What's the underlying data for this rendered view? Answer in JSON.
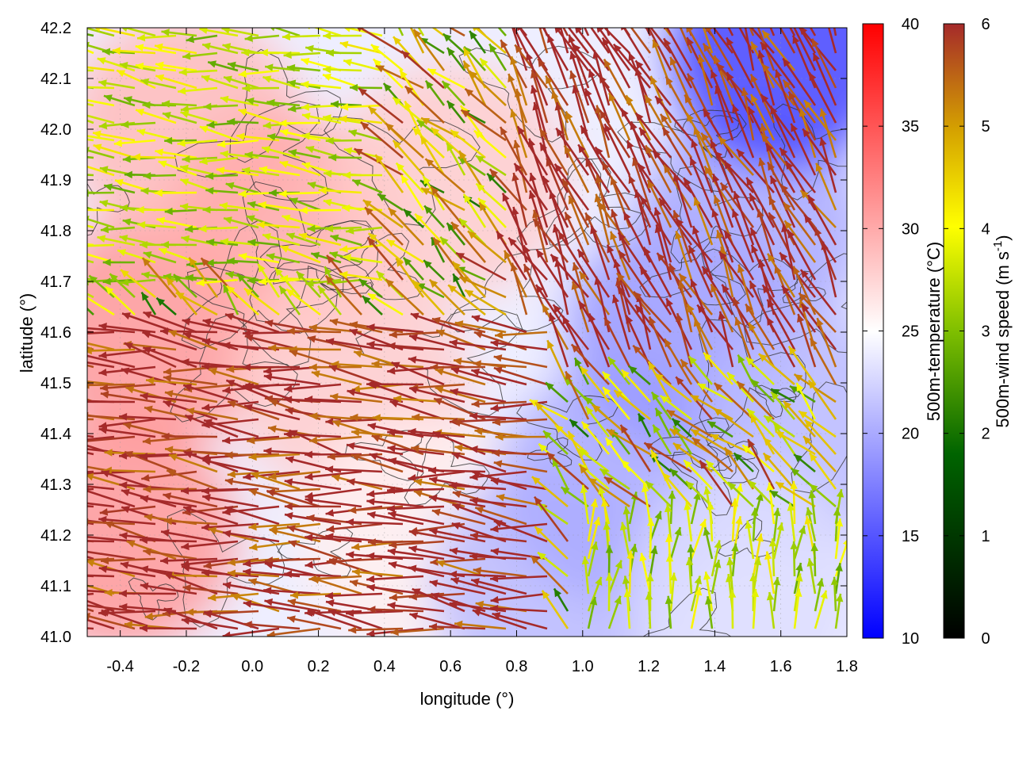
{
  "chart_data": {
    "type": "heatmap",
    "xlabel": "longitude (°)",
    "ylabel": "latitude (°)",
    "xlim": [
      -0.5,
      1.8
    ],
    "ylim": [
      41.0,
      42.2
    ],
    "x_ticks": [
      "-0.4",
      "-0.2",
      "0.0",
      "0.2",
      "0.4",
      "0.6",
      "0.8",
      "1.0",
      "1.2",
      "1.4",
      "1.6",
      "1.8"
    ],
    "x_tick_values": [
      -0.4,
      -0.2,
      0.0,
      0.2,
      0.4,
      0.6,
      0.8,
      1.0,
      1.2,
      1.4,
      1.6,
      1.8
    ],
    "y_ticks": [
      "41.0",
      "41.1",
      "41.2",
      "41.3",
      "41.4",
      "41.5",
      "41.6",
      "41.7",
      "41.8",
      "41.9",
      "42.0",
      "42.1",
      "42.2"
    ],
    "y_tick_values": [
      41.0,
      41.1,
      41.2,
      41.3,
      41.4,
      41.5,
      41.6,
      41.7,
      41.8,
      41.9,
      42.0,
      42.1,
      42.2
    ],
    "grid": true,
    "temperature_colorbar": {
      "label": "500m-temperature (°C)",
      "range": [
        10,
        40
      ],
      "ticks": [
        "10",
        "15",
        "20",
        "25",
        "30",
        "35",
        "40"
      ],
      "tick_values": [
        10,
        15,
        20,
        25,
        30,
        35,
        40
      ],
      "colors": {
        "low": "#0000ff",
        "mid": "#ffffff",
        "high": "#ff0000"
      }
    },
    "wind_colorbar": {
      "label_main": "500m-wind speed (m s",
      "label_sup": "-1",
      "label_end": ")",
      "range": [
        0,
        6
      ],
      "ticks": [
        "0",
        "1",
        "2",
        "3",
        "4",
        "5",
        "6"
      ],
      "tick_values": [
        0,
        1,
        2,
        3,
        4,
        5,
        6
      ],
      "colors": [
        "#000000",
        "#006400",
        "#7fbf00",
        "#ffff00",
        "#d4a000",
        "#a52a2a"
      ]
    },
    "temperature_field_samples": [
      {
        "lon": -0.4,
        "lat": 41.2,
        "t": 31
      },
      {
        "lon": -0.3,
        "lat": 41.6,
        "t": 31
      },
      {
        "lon": -0.2,
        "lat": 42.0,
        "t": 29
      },
      {
        "lon": 0.1,
        "lat": 41.8,
        "t": 30
      },
      {
        "lon": 0.3,
        "lat": 41.5,
        "t": 28
      },
      {
        "lon": 0.5,
        "lat": 41.2,
        "t": 26
      },
      {
        "lon": 0.6,
        "lat": 41.9,
        "t": 28
      },
      {
        "lon": 0.9,
        "lat": 41.1,
        "t": 21
      },
      {
        "lon": 1.1,
        "lat": 41.3,
        "t": 20
      },
      {
        "lon": 1.3,
        "lat": 41.6,
        "t": 19
      },
      {
        "lon": 1.5,
        "lat": 41.8,
        "t": 20
      },
      {
        "lon": 1.6,
        "lat": 42.15,
        "t": 14
      },
      {
        "lon": 1.7,
        "lat": 41.4,
        "t": 21
      },
      {
        "lon": 1.5,
        "lat": 41.1,
        "t": 23
      }
    ],
    "wind_field_description_regions": [
      {
        "lon_range": [
          -0.5,
          0.9
        ],
        "lat_range": [
          41.0,
          41.6
        ],
        "speed": 6,
        "direction": "westward"
      },
      {
        "lon_range": [
          -0.5,
          0.4
        ],
        "lat_range": [
          41.7,
          42.2
        ],
        "speed": 3.5,
        "direction": "westward"
      },
      {
        "lon_range": [
          0.8,
          1.8
        ],
        "lat_range": [
          41.5,
          42.2
        ],
        "speed": 6,
        "direction": "northwestward"
      },
      {
        "lon_range": [
          1.0,
          1.8
        ],
        "lat_range": [
          41.0,
          41.25
        ],
        "speed": 3.5,
        "direction": "northward"
      }
    ]
  }
}
